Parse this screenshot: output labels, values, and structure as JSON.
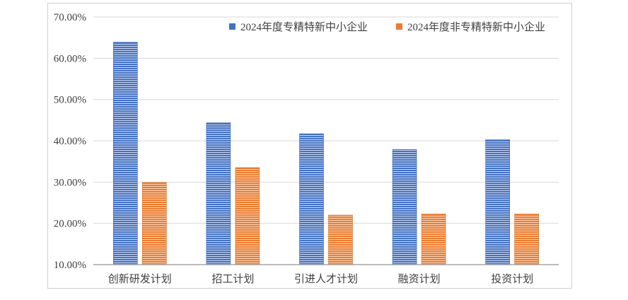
{
  "chart_data": {
    "type": "bar",
    "categories": [
      "创新研发计划",
      "招工计划",
      "引进人才计划",
      "融资计划",
      "投资计划"
    ],
    "series": [
      {
        "name": "2024年度专精特新中小企业",
        "values": [
          63.9,
          44.4,
          41.7,
          37.9,
          40.3
        ],
        "color": "#4472C4"
      },
      {
        "name": "2024年度非专精特新中小企业",
        "values": [
          29.9,
          33.5,
          22.0,
          22.3,
          22.3
        ],
        "color": "#ED7D31"
      }
    ],
    "yticks": [
      "10.00%",
      "20.00%",
      "30.00%",
      "40.00%",
      "50.00%",
      "60.00%",
      "70.00%"
    ],
    "ylim": [
      10,
      70
    ],
    "grid": true,
    "legend": "top-right"
  }
}
